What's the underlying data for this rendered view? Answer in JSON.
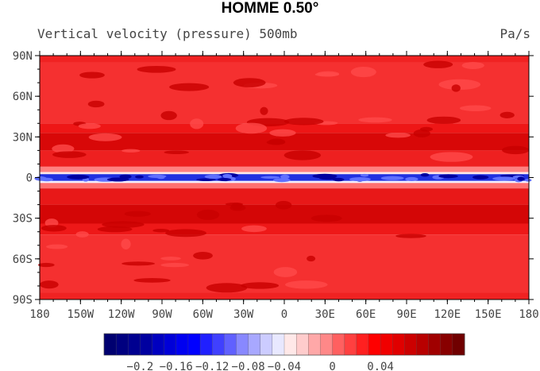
{
  "title": "HOMME 0.50°",
  "subtitle": "Vertical velocity (pressure) 500mb",
  "units": "Pa/s",
  "lat_labels": [
    "90N",
    "60N",
    "30N",
    "0",
    "30S",
    "60S",
    "90S"
  ],
  "lat_values": [
    90,
    60,
    30,
    0,
    -30,
    -60,
    -90
  ],
  "lon_labels": [
    "180",
    "150W",
    "120W",
    "90W",
    "60W",
    "30W",
    "0",
    "30E",
    "60E",
    "90E",
    "120E",
    "150E",
    "180"
  ],
  "lon_values": [
    -180,
    -150,
    -120,
    -90,
    -60,
    -30,
    0,
    30,
    60,
    90,
    120,
    150,
    180
  ],
  "zones": [
    {
      "lat": [
        90,
        85
      ],
      "color": "#f02222"
    },
    {
      "lat": [
        85,
        40
      ],
      "color": "#f53030"
    },
    {
      "lat": [
        40,
        33
      ],
      "color": "#ee1616"
    },
    {
      "lat": [
        33,
        20
      ],
      "color": "#d80808"
    },
    {
      "lat": [
        20,
        8
      ],
      "color": "#ee2020"
    },
    {
      "lat": [
        8,
        4
      ],
      "color": "#ff8080"
    },
    {
      "lat": [
        4,
        2.5
      ],
      "color": "#fde8e8"
    },
    {
      "lat": [
        2.5,
        -2.5
      ],
      "color": "#2030e0"
    },
    {
      "lat": [
        -2.5,
        -4
      ],
      "color": "#f4f0ff"
    },
    {
      "lat": [
        -4,
        -8
      ],
      "color": "#ff7070"
    },
    {
      "lat": [
        -8,
        -20
      ],
      "color": "#e81818"
    },
    {
      "lat": [
        -20,
        -34
      ],
      "color": "#d40606"
    },
    {
      "lat": [
        -34,
        -42
      ],
      "color": "#ee1818"
    },
    {
      "lat": [
        -42,
        -85
      ],
      "color": "#f53030"
    },
    {
      "lat": [
        -85,
        -90
      ],
      "color": "#f02222"
    }
  ],
  "colorbar": {
    "colors": [
      "#000070",
      "#000080",
      "#000090",
      "#0000a0",
      "#0000c0",
      "#0000d8",
      "#0000f0",
      "#0000ff",
      "#2020ff",
      "#4040ff",
      "#6060ff",
      "#8888ff",
      "#a8a8ff",
      "#ccccff",
      "#e8e8ff",
      "#ffe8e8",
      "#ffcccc",
      "#ffa8a8",
      "#ff8888",
      "#ff6060",
      "#ff4040",
      "#ff2020",
      "#ff0000",
      "#f00000",
      "#e00000",
      "#cc0000",
      "#b80000",
      "#a00000",
      "#880000",
      "#700000"
    ],
    "labels": [
      "−0.2",
      "−0.16",
      "−0.12",
      "−0.08",
      "−0.04",
      "0",
      "0.04"
    ],
    "label_box_index": [
      3,
      6,
      9,
      12,
      15,
      19,
      23
    ]
  }
}
